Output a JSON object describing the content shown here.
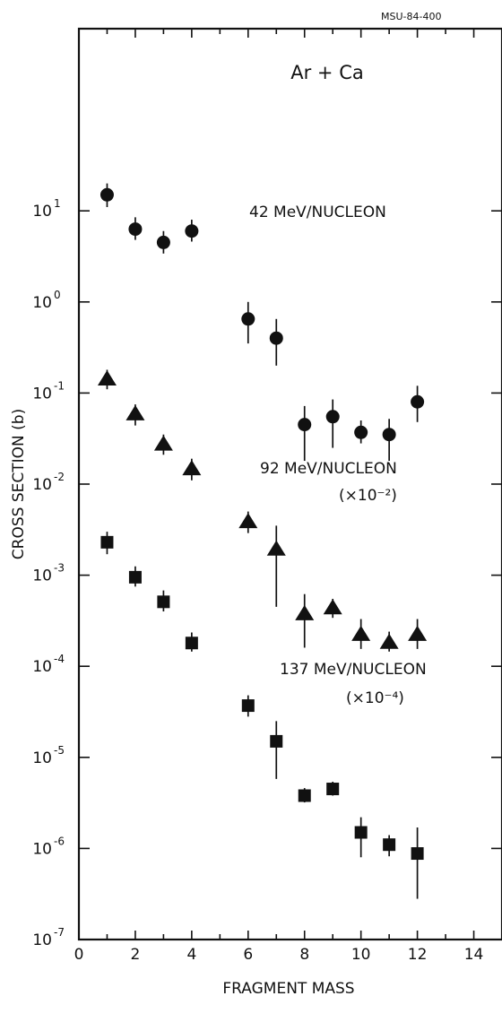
{
  "chart_data": {
    "type": "scatter",
    "id_label": "MSU-84-400",
    "title": "Ar + Ca",
    "xlabel": "FRAGMENT MASS",
    "ylabel": "CROSS SECTION (b)",
    "xlim": [
      0,
      15
    ],
    "ylim": [
      1e-07,
      1000
    ],
    "y_scale": "log",
    "grid": false,
    "x_ticks": [
      {
        "value": 0,
        "label": "0"
      },
      {
        "value": 2,
        "label": "2"
      },
      {
        "value": 4,
        "label": "4"
      },
      {
        "value": 6,
        "label": "6"
      },
      {
        "value": 8,
        "label": "8"
      },
      {
        "value": 10,
        "label": "10"
      },
      {
        "value": 12,
        "label": "12"
      },
      {
        "value": 14,
        "label": "14"
      }
    ],
    "y_ticks": [
      {
        "exp": 1,
        "base": "10",
        "power": "1"
      },
      {
        "exp": 0,
        "base": "10",
        "power": "0"
      },
      {
        "exp": -1,
        "base": "10",
        "power": "-1"
      },
      {
        "exp": -2,
        "base": "10",
        "power": "-2"
      },
      {
        "exp": -3,
        "base": "10",
        "power": "-3"
      },
      {
        "exp": -4,
        "base": "10",
        "power": "-4"
      },
      {
        "exp": -5,
        "base": "10",
        "power": "-5"
      },
      {
        "exp": -6,
        "base": "10",
        "power": "-6"
      },
      {
        "exp": -7,
        "base": "10",
        "power": "-7"
      }
    ],
    "series": [
      {
        "name": "42 MeV/NUCLEON",
        "scale": "",
        "marker": "circle",
        "points": [
          {
            "x": 1,
            "y": 15,
            "lo": 11,
            "hi": 20
          },
          {
            "x": 2,
            "y": 6.3,
            "lo": 4.8,
            "hi": 8.5
          },
          {
            "x": 3,
            "y": 4.5,
            "lo": 3.4,
            "hi": 6.0
          },
          {
            "x": 4,
            "y": 6.0,
            "lo": 4.6,
            "hi": 8.0
          },
          {
            "x": 6,
            "y": 0.65,
            "lo": 0.35,
            "hi": 1.0
          },
          {
            "x": 7,
            "y": 0.4,
            "lo": 0.2,
            "hi": 0.65
          },
          {
            "x": 8,
            "y": 0.045,
            "lo": 0.018,
            "hi": 0.072
          },
          {
            "x": 9,
            "y": 0.055,
            "lo": 0.025,
            "hi": 0.085
          },
          {
            "x": 10,
            "y": 0.037,
            "lo": 0.028,
            "hi": 0.05
          },
          {
            "x": 11,
            "y": 0.035,
            "lo": 0.018,
            "hi": 0.052
          },
          {
            "x": 12,
            "y": 0.08,
            "lo": 0.048,
            "hi": 0.12
          }
        ]
      },
      {
        "name": "92 MeV/NUCLEON",
        "scale": "(×10⁻²)",
        "marker": "triangle",
        "points": [
          {
            "x": 1,
            "y": 0.14,
            "lo": 0.11,
            "hi": 0.18
          },
          {
            "x": 2,
            "y": 0.058,
            "lo": 0.044,
            "hi": 0.075
          },
          {
            "x": 3,
            "y": 0.027,
            "lo": 0.021,
            "hi": 0.035
          },
          {
            "x": 4,
            "y": 0.0145,
            "lo": 0.011,
            "hi": 0.019
          },
          {
            "x": 6,
            "y": 0.0038,
            "lo": 0.0029,
            "hi": 0.005
          },
          {
            "x": 7,
            "y": 0.0019,
            "lo": 0.00045,
            "hi": 0.0035
          },
          {
            "x": 8,
            "y": 0.00037,
            "lo": 0.00016,
            "hi": 0.00062
          },
          {
            "x": 9,
            "y": 0.00043,
            "lo": 0.00034,
            "hi": 0.00055
          },
          {
            "x": 10,
            "y": 0.00022,
            "lo": 0.000155,
            "hi": 0.00033
          },
          {
            "x": 11,
            "y": 0.00018,
            "lo": 0.000145,
            "hi": 0.00024
          },
          {
            "x": 12,
            "y": 0.00022,
            "lo": 0.000155,
            "hi": 0.00033
          }
        ]
      },
      {
        "name": "137 MeV/NUCLEON",
        "scale": "(×10⁻⁴)",
        "marker": "square",
        "points": [
          {
            "x": 1,
            "y": 0.0023,
            "lo": 0.0017,
            "hi": 0.003
          },
          {
            "x": 2,
            "y": 0.00095,
            "lo": 0.00075,
            "hi": 0.00125
          },
          {
            "x": 3,
            "y": 0.00051,
            "lo": 0.0004,
            "hi": 0.00068
          },
          {
            "x": 4,
            "y": 0.00018,
            "lo": 0.000145,
            "hi": 0.000235
          },
          {
            "x": 6,
            "y": 3.7e-05,
            "lo": 2.8e-05,
            "hi": 4.8e-05
          },
          {
            "x": 7,
            "y": 1.5e-05,
            "lo": 5.8e-06,
            "hi": 2.5e-05
          },
          {
            "x": 8,
            "y": 3.8e-06,
            "lo": 3.2e-06,
            "hi": 4.6e-06
          },
          {
            "x": 9,
            "y": 4.5e-06,
            "lo": 3.8e-06,
            "hi": 5.4e-06
          },
          {
            "x": 10,
            "y": 1.5e-06,
            "lo": 8e-07,
            "hi": 2.2e-06
          },
          {
            "x": 11,
            "y": 1.1e-06,
            "lo": 8.2e-07,
            "hi": 1.4e-06
          },
          {
            "x": 12,
            "y": 8.8e-07,
            "lo": 2.8e-07,
            "hi": 1.7e-06
          }
        ]
      }
    ]
  }
}
